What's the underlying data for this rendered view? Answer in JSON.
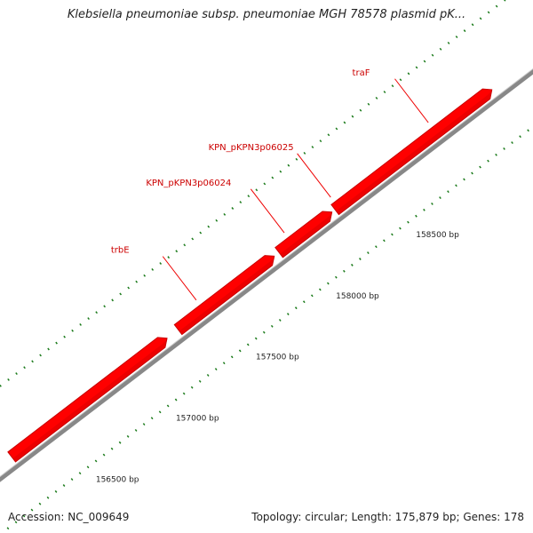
{
  "title": "Klebsiella pneumoniae subsp. pneumoniae MGH 78578 plasmid pK...",
  "footer": {
    "accession": "Accession: NC_009649",
    "summary": "Topology: circular; Length: 175,879 bp; Genes: 178"
  },
  "colors": {
    "gene": "#ff0000",
    "gene_shade": "#c80000",
    "backbone": "#888888",
    "tick": "#1a7a1a",
    "label": "#cc0000",
    "leader": "#ee0000"
  },
  "genes": [
    {
      "name": "",
      "start": 156200,
      "end": 157170
    },
    {
      "name": "trbE",
      "start": 157240,
      "end": 157840
    },
    {
      "name": "KPN_pKPN3p06024",
      "start": 157870,
      "end": 158200
    },
    {
      "name": "KPN_pKPN3p06025",
      "start": 158220,
      "end": 159200
    }
  ],
  "gene_labels": [
    {
      "text": "trbE",
      "pos": 157400
    },
    {
      "text": "KPN_pKPN3p06024",
      "pos": 157950
    },
    {
      "text": "KPN_pKPN3p06025",
      "pos": 158240
    },
    {
      "text": "traF",
      "pos": 158850
    }
  ],
  "bp_labels": [
    "156500 bp",
    "157000 bp",
    "157500 bp",
    "158000 bp",
    "158500 bp"
  ]
}
